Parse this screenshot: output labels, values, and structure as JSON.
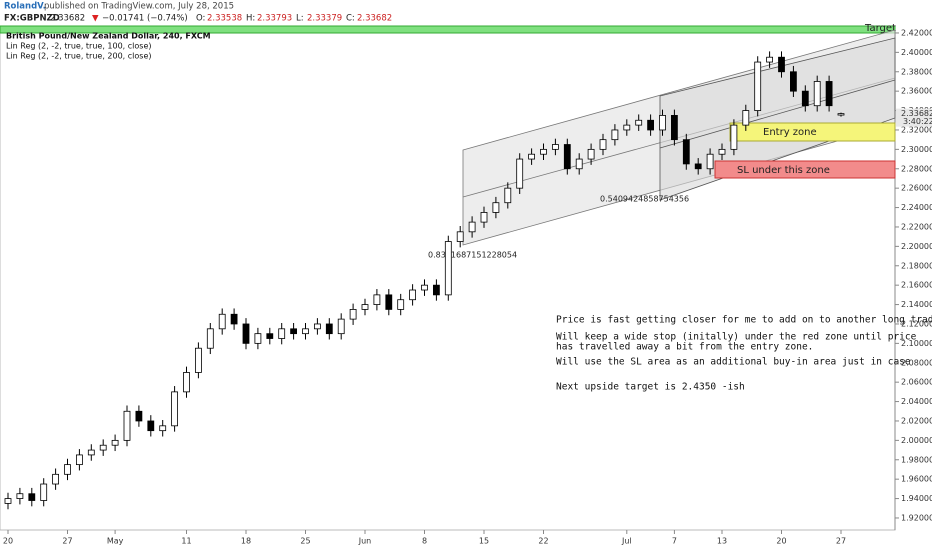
{
  "chart_data": {
    "type": "candlestick",
    "author": "RolandV.",
    "published": "published on TradingView.com, July 28, 2015",
    "symbol": "FX:GBPNZD",
    "last": 2.33682,
    "change_arrow": "▼",
    "change": "−0.01741 (−0.74%)",
    "quote": [
      {
        "label": "O:",
        "value": 2.33538
      },
      {
        "label": "H:",
        "value": 2.33793
      },
      {
        "label": "L:",
        "value": 2.33379
      },
      {
        "label": "C:",
        "value": 2.33682
      }
    ],
    "timer": "3:40:22",
    "legend": [
      "British Pound/New Zealand Dollar, 240, FXCM",
      "Lin Reg (2, -2, true, true, 100, close)",
      "Lin Reg (2, -2, true, true, 200, close)"
    ],
    "pearson": [
      "0.8301687151228054",
      "0.5409424858754356"
    ],
    "zones": [
      "Target",
      "Entry zone",
      "SL under this zone"
    ],
    "notes": [
      "Price is fast getting closer for me to add on to another long trade,",
      "Will keep a wide stop (initally) under the red zone until price",
      "has travelled away a bit from the entry zone.",
      "Will use the SL area as an additional buy-in area just in case",
      "Next upside target is 2.4350 -ish"
    ],
    "categories": [
      "20",
      null,
      null,
      null,
      null,
      "27",
      null,
      null,
      null,
      "May",
      null,
      null,
      null,
      null,
      null,
      "11",
      null,
      null,
      null,
      null,
      "18",
      null,
      null,
      null,
      null,
      "25",
      null,
      null,
      null,
      null,
      "Jun",
      null,
      null,
      null,
      null,
      "8",
      null,
      null,
      null,
      null,
      "15",
      null,
      null,
      null,
      null,
      "22",
      null,
      null,
      null,
      null,
      null,
      null,
      "Jul",
      null,
      null,
      null,
      "7",
      null,
      null,
      null,
      "13",
      null,
      null,
      null,
      null,
      "20",
      null,
      null,
      null,
      null,
      "27"
    ],
    "open": [
      1.935,
      1.94,
      1.945,
      1.938,
      1.955,
      1.965,
      1.975,
      1.985,
      1.99,
      1.995,
      2.0,
      2.03,
      2.02,
      2.01,
      2.015,
      2.05,
      2.07,
      2.095,
      2.115,
      2.13,
      2.12,
      2.1,
      2.11,
      2.105,
      2.115,
      2.11,
      2.115,
      2.12,
      2.11,
      2.125,
      2.135,
      2.14,
      2.15,
      2.135,
      2.145,
      2.155,
      2.16,
      2.15,
      2.205,
      2.215,
      2.225,
      2.235,
      2.245,
      2.26,
      2.29,
      2.295,
      2.3,
      2.305,
      2.28,
      2.29,
      2.3,
      2.31,
      2.32,
      2.325,
      2.33,
      2.32,
      2.335,
      2.31,
      2.285,
      2.28,
      2.295,
      2.3,
      2.325,
      2.34,
      2.39,
      2.395,
      2.38,
      2.36,
      2.345,
      2.37,
      2.33538
    ],
    "high": [
      1.946,
      1.951,
      1.951,
      1.961,
      1.971,
      1.981,
      1.991,
      1.996,
      2.001,
      2.006,
      2.036,
      2.036,
      2.026,
      2.021,
      2.056,
      2.076,
      2.101,
      2.121,
      2.136,
      2.136,
      2.126,
      2.116,
      2.116,
      2.121,
      2.121,
      2.121,
      2.126,
      2.126,
      2.131,
      2.141,
      2.146,
      2.156,
      2.156,
      2.151,
      2.161,
      2.166,
      2.166,
      2.211,
      2.221,
      2.231,
      2.241,
      2.251,
      2.266,
      2.296,
      2.301,
      2.306,
      2.311,
      2.311,
      2.296,
      2.306,
      2.316,
      2.326,
      2.331,
      2.336,
      2.336,
      2.341,
      2.341,
      2.316,
      2.291,
      2.301,
      2.306,
      2.331,
      2.346,
      2.396,
      2.401,
      2.401,
      2.386,
      2.366,
      2.376,
      2.376,
      2.33793
    ],
    "low": [
      1.929,
      1.934,
      1.932,
      1.932,
      1.949,
      1.959,
      1.969,
      1.979,
      1.984,
      1.989,
      1.994,
      2.014,
      2.004,
      2.004,
      2.009,
      2.044,
      2.064,
      2.089,
      2.109,
      2.114,
      2.094,
      2.094,
      2.099,
      2.099,
      2.104,
      2.104,
      2.109,
      2.104,
      2.104,
      2.119,
      2.129,
      2.134,
      2.129,
      2.129,
      2.139,
      2.149,
      2.144,
      2.144,
      2.199,
      2.209,
      2.219,
      2.229,
      2.239,
      2.254,
      2.284,
      2.289,
      2.294,
      2.274,
      2.274,
      2.284,
      2.294,
      2.304,
      2.314,
      2.319,
      2.314,
      2.314,
      2.304,
      2.279,
      2.274,
      2.274,
      2.289,
      2.294,
      2.319,
      2.334,
      2.384,
      2.374,
      2.354,
      2.339,
      2.339,
      2.339,
      2.33379
    ],
    "close": [
      1.94,
      1.945,
      1.938,
      1.955,
      1.965,
      1.975,
      1.985,
      1.99,
      1.995,
      2.0,
      2.03,
      2.02,
      2.01,
      2.015,
      2.05,
      2.07,
      2.095,
      2.115,
      2.13,
      2.12,
      2.1,
      2.11,
      2.105,
      2.115,
      2.11,
      2.115,
      2.12,
      2.11,
      2.125,
      2.135,
      2.14,
      2.15,
      2.135,
      2.145,
      2.155,
      2.16,
      2.15,
      2.205,
      2.215,
      2.225,
      2.235,
      2.245,
      2.26,
      2.29,
      2.295,
      2.3,
      2.305,
      2.28,
      2.29,
      2.3,
      2.31,
      2.32,
      2.325,
      2.33,
      2.32,
      2.335,
      2.31,
      2.285,
      2.28,
      2.295,
      2.3,
      2.325,
      2.34,
      2.39,
      2.395,
      2.38,
      2.36,
      2.345,
      2.37,
      2.345,
      2.33682
    ],
    "up_color": "#ffffff",
    "down_color": "#000000",
    "ylim": [
      1.9076,
      2.4313
    ],
    "yticks": [
      {
        "value": 1.92,
        "label": "1.92000"
      },
      {
        "value": 1.94,
        "label": "1.94000"
      },
      {
        "value": 1.96,
        "label": "1.96000"
      },
      {
        "value": 1.98,
        "label": "1.98000"
      },
      {
        "value": 2.0,
        "label": "2.00000"
      },
      {
        "value": 2.02,
        "label": "2.02000"
      },
      {
        "value": 2.04,
        "label": "2.04000"
      },
      {
        "value": 2.06,
        "label": "2.06000"
      },
      {
        "value": 2.08,
        "label": "2.08000"
      },
      {
        "value": 2.1,
        "label": "2.10000"
      },
      {
        "value": 2.12,
        "label": "2.12000"
      },
      {
        "value": 2.14,
        "label": "2.14000"
      },
      {
        "value": 2.16,
        "label": "2.16000"
      },
      {
        "value": 2.18,
        "label": "2.18000"
      },
      {
        "value": 2.2,
        "label": "2.20000"
      },
      {
        "value": 2.22,
        "label": "2.22000"
      },
      {
        "value": 2.24,
        "label": "2.24000"
      },
      {
        "value": 2.26,
        "label": "2.26000"
      },
      {
        "value": 2.28,
        "label": "2.28000"
      },
      {
        "value": 2.3,
        "label": "2.30000"
      },
      {
        "value": 2.32,
        "label": "2.32000"
      },
      {
        "value": 2.34,
        "label": "2.34000"
      },
      {
        "value": 2.36,
        "label": "2.36000"
      },
      {
        "value": 2.38,
        "label": "2.38000"
      },
      {
        "value": 2.4,
        "label": "2.40000"
      },
      {
        "value": 2.42,
        "label": "2.42000"
      }
    ],
    "grid": false
  }
}
